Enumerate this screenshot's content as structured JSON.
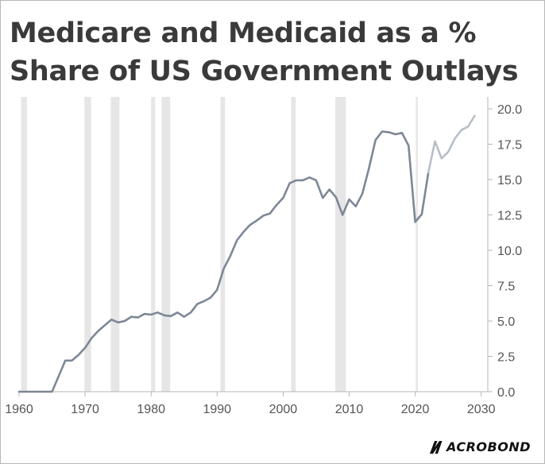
{
  "title": {
    "line1": "Medicare and Medicaid as a %",
    "line2": "Share of US Government Outlays"
  },
  "logo": {
    "text": "ACROBOND",
    "icon": "macrobond-m-logo-mark"
  },
  "colors": {
    "actual": "#7d8796",
    "projection": "#b9bfc8",
    "recession": "#e6e6e6",
    "axis": "#b5b5b5",
    "text": "#555555"
  },
  "chart_data": {
    "type": "line",
    "title": "Medicare and Medicaid as a % Share of US Government Outlays",
    "xlabel": "",
    "ylabel": "",
    "xlim": [
      1960,
      2031
    ],
    "ylim": [
      0,
      20
    ],
    "x_ticks": [
      1960,
      1970,
      1980,
      1990,
      2000,
      2010,
      2020,
      2030
    ],
    "y_ticks": [
      0.0,
      2.5,
      5.0,
      7.5,
      10.0,
      12.5,
      15.0,
      17.5,
      20.0
    ],
    "y_axis_side": "right",
    "grid": false,
    "recessions": [
      [
        1960.3,
        1961.2
      ],
      [
        1969.9,
        1970.9
      ],
      [
        1973.9,
        1975.2
      ],
      [
        1980.0,
        1980.6
      ],
      [
        1981.6,
        1982.9
      ],
      [
        1990.5,
        1991.2
      ],
      [
        2001.2,
        2001.9
      ],
      [
        2007.9,
        2009.5
      ],
      [
        2020.1,
        2020.4
      ]
    ],
    "series": [
      {
        "type": "actual",
        "x": [
          1960,
          1961,
          1962,
          1963,
          1964,
          1965,
          1966,
          1967,
          1968,
          1969,
          1970,
          1971,
          1972,
          1973,
          1974,
          1975,
          1976,
          1977,
          1978,
          1979,
          1980,
          1981,
          1982,
          1983,
          1984,
          1985,
          1986,
          1987,
          1988,
          1989,
          1990,
          1991,
          1992,
          1993,
          1994,
          1995,
          1996,
          1997,
          1998,
          1999,
          2000,
          2001,
          2002,
          2003,
          2004,
          2005,
          2006,
          2007,
          2008,
          2009,
          2010,
          2011,
          2012,
          2013,
          2014,
          2015,
          2016,
          2017,
          2018,
          2019,
          2020,
          2021,
          2022
        ],
        "values": [
          0.0,
          0.0,
          0.0,
          0.0,
          0.0,
          0.0,
          1.1,
          2.2,
          2.2,
          2.6,
          3.1,
          3.8,
          4.3,
          4.7,
          5.1,
          4.9,
          5.0,
          5.3,
          5.25,
          5.5,
          5.45,
          5.6,
          5.4,
          5.35,
          5.6,
          5.3,
          5.6,
          6.2,
          6.4,
          6.65,
          7.2,
          8.7,
          9.6,
          10.7,
          11.3,
          11.8,
          12.1,
          12.45,
          12.6,
          13.2,
          13.7,
          14.75,
          14.95,
          14.95,
          15.15,
          14.95,
          13.7,
          14.3,
          13.75,
          12.5,
          13.6,
          13.1,
          14.0,
          15.8,
          17.8,
          18.4,
          18.35,
          18.2,
          18.3,
          17.4,
          12.0,
          12.55,
          15.5
        ]
      },
      {
        "type": "projection",
        "x": [
          2022,
          2023,
          2024,
          2025,
          2026,
          2027,
          2028,
          2029
        ],
        "values": [
          15.5,
          17.7,
          16.5,
          16.95,
          17.9,
          18.5,
          18.75,
          19.5
        ]
      }
    ]
  }
}
